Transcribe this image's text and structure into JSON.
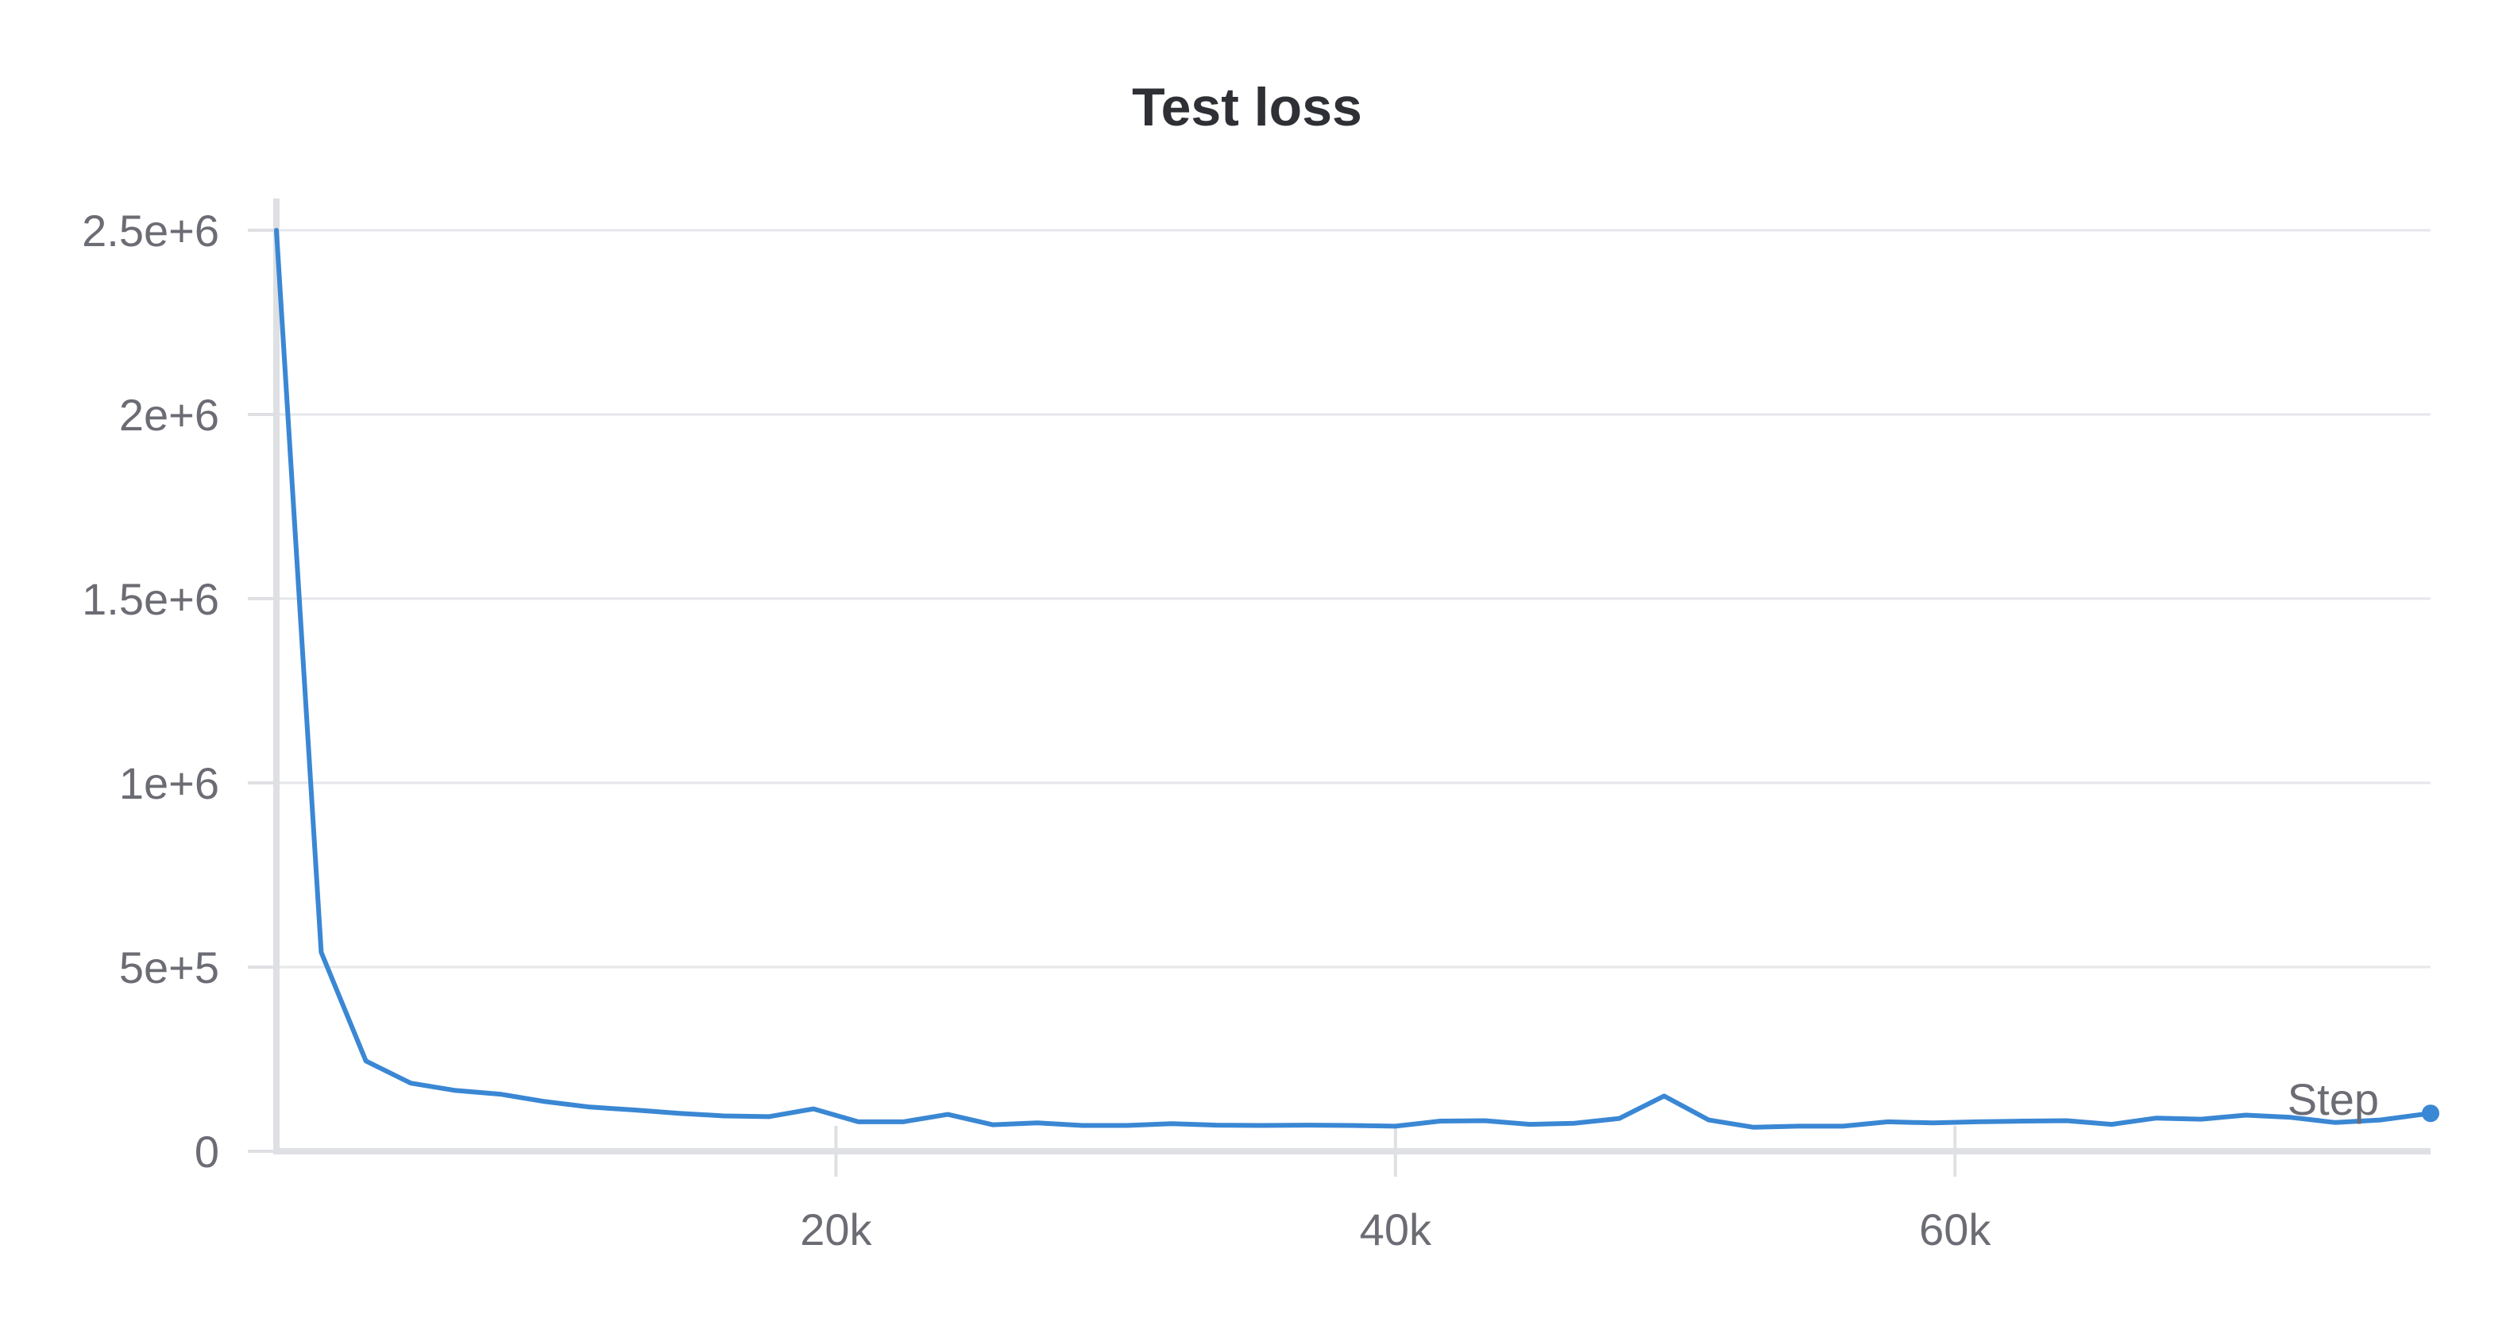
{
  "chart_data": {
    "type": "line",
    "title": "Test loss",
    "xlabel": "Step",
    "ylabel": "",
    "xlim": [
      0,
      77000
    ],
    "ylim": [
      0,
      2500000
    ],
    "x_ticks": [
      20000,
      40000,
      60000
    ],
    "x_tick_labels": [
      "20k",
      "40k",
      "60k"
    ],
    "y_ticks": [
      0,
      500000,
      1000000,
      1500000,
      2000000,
      2500000
    ],
    "y_tick_labels": [
      "0",
      "5e+5",
      "1e+6",
      "1.5e+6",
      "2e+6",
      "2.5e+6"
    ],
    "grid": true,
    "legend": "none",
    "colors": {
      "series": "#3a87d4",
      "grid": "#e6e7ea",
      "axis": "#dfe0e3"
    },
    "series": [
      {
        "x": [
          0,
          1600,
          3200,
          4800,
          6400,
          8000,
          9600,
          11200,
          12800,
          14400,
          16000,
          17600,
          19200,
          20800,
          22400,
          24000,
          25600,
          27200,
          28800,
          30400,
          32000,
          33600,
          35200,
          36800,
          38400,
          40000,
          41600,
          43200,
          44800,
          46400,
          48000,
          49600,
          51200,
          52800,
          54400,
          56000,
          57600,
          59200,
          60800,
          62400,
          64000,
          65600,
          67200,
          68800,
          70400,
          72000,
          73600,
          75200,
          77000
        ],
        "values": [
          2500000,
          540000,
          245000,
          185000,
          165000,
          155000,
          135000,
          120000,
          112000,
          103000,
          96000,
          94000,
          115000,
          80000,
          80000,
          100000,
          72000,
          77000,
          70000,
          70000,
          75000,
          71000,
          70000,
          71000,
          70000,
          68000,
          82000,
          83000,
          73000,
          76000,
          89000,
          150000,
          85000,
          65000,
          68000,
          68000,
          80000,
          77000,
          80000,
          82000,
          83000,
          73000,
          90000,
          87000,
          98000,
          92000,
          78000,
          85000,
          103000
        ]
      }
    ]
  }
}
